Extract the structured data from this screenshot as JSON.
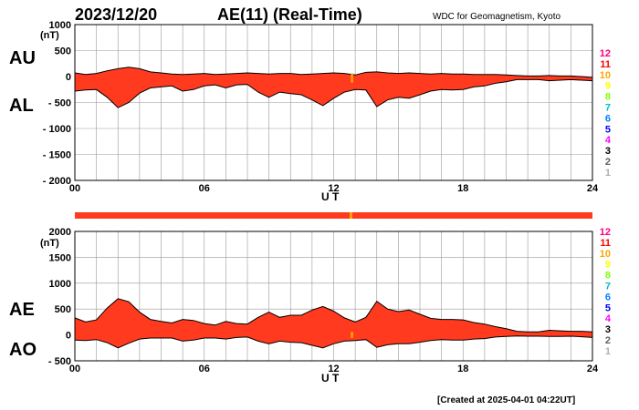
{
  "header": {
    "date": "2023/12/20",
    "title": "AE(11) (Real-Time)",
    "source": "WDC for Geomagnetism, Kyoto"
  },
  "footer": {
    "created": "[Created at 2025-04-01 04:22UT]"
  },
  "station_count_legend": [
    "12",
    "11",
    "10",
    "9",
    "8",
    "7",
    "6",
    "5",
    "4",
    "3",
    "2",
    "1"
  ],
  "station_count_colors": [
    "#ff0080",
    "#ff0000",
    "#ffa500",
    "#ffff00",
    "#80ff00",
    "#00c0c0",
    "#0080ff",
    "#0000ff",
    "#ff00ff",
    "#000000",
    "#606060",
    "#b0b0b0"
  ],
  "colors": {
    "fill": "#ff3a1e",
    "fill_dark": "#e8300f",
    "gap": "#ffa500",
    "line": "#000000",
    "grid": "#999999"
  },
  "chart_data": [
    {
      "type": "area",
      "title": "",
      "xlabel": "U T",
      "ylabel": "(nT)",
      "upper_series_label": "AU",
      "lower_series_label": "AL",
      "x_ticks": [
        "00",
        "06",
        "12",
        "18",
        "24"
      ],
      "y_ticks": [
        "1000",
        "500",
        "0",
        "- 500",
        "- 1000",
        "- 1500",
        "- 2000"
      ],
      "xlim": [
        0,
        24
      ],
      "ylim": [
        -2000,
        1000
      ],
      "grid": true,
      "series": [
        {
          "name": "AU",
          "x": [
            0,
            0.5,
            1,
            1.5,
            2,
            2.5,
            3,
            3.5,
            4,
            4.5,
            5,
            5.5,
            6,
            6.5,
            7,
            7.5,
            8,
            8.5,
            9,
            9.5,
            10,
            10.5,
            11,
            11.5,
            12,
            12.5,
            13,
            13.5,
            14,
            14.5,
            15,
            15.5,
            16,
            16.5,
            17,
            17.5,
            18,
            18.5,
            19,
            19.5,
            20,
            20.5,
            21,
            21.5,
            22,
            22.5,
            23,
            23.5,
            24
          ],
          "values": [
            70,
            40,
            60,
            110,
            150,
            180,
            150,
            90,
            70,
            50,
            40,
            50,
            60,
            40,
            50,
            60,
            70,
            60,
            50,
            60,
            60,
            40,
            50,
            60,
            70,
            60,
            30,
            80,
            90,
            70,
            60,
            70,
            60,
            50,
            60,
            50,
            50,
            40,
            40,
            40,
            30,
            20,
            10,
            10,
            20,
            10,
            10,
            0,
            -20
          ]
        },
        {
          "name": "AL",
          "x": [
            0,
            0.5,
            1,
            1.5,
            2,
            2.5,
            3,
            3.5,
            4,
            4.5,
            5,
            5.5,
            6,
            6.5,
            7,
            7.5,
            8,
            8.5,
            9,
            9.5,
            10,
            10.5,
            11,
            11.5,
            12,
            12.5,
            13,
            13.5,
            14,
            14.5,
            15,
            15.5,
            16,
            16.5,
            17,
            17.5,
            18,
            18.5,
            19,
            19.5,
            20,
            20.5,
            21,
            21.5,
            22,
            22.5,
            23,
            23.5,
            24
          ],
          "values": [
            -280,
            -260,
            -250,
            -400,
            -600,
            -500,
            -320,
            -220,
            -200,
            -180,
            -280,
            -250,
            -180,
            -160,
            -220,
            -160,
            -150,
            -300,
            -400,
            -300,
            -330,
            -350,
            -450,
            -560,
            -420,
            -300,
            -250,
            -260,
            -580,
            -450,
            -400,
            -420,
            -350,
            -280,
            -250,
            -260,
            -250,
            -200,
            -180,
            -130,
            -100,
            -60,
            -60,
            -60,
            -80,
            -70,
            -60,
            -70,
            -80
          ]
        }
      ]
    },
    {
      "type": "area",
      "title": "",
      "xlabel": "U T",
      "ylabel": "(nT)",
      "upper_series_label": "AE",
      "lower_series_label": "AO",
      "x_ticks": [
        "00",
        "06",
        "12",
        "18",
        "24"
      ],
      "y_ticks": [
        "2000",
        "1500",
        "1000",
        "500",
        "0",
        "- 500"
      ],
      "xlim": [
        0,
        24
      ],
      "ylim": [
        -500,
        2000
      ],
      "grid": true,
      "series": [
        {
          "name": "AE",
          "x": [
            0,
            0.5,
            1,
            1.5,
            2,
            2.5,
            3,
            3.5,
            4,
            4.5,
            5,
            5.5,
            6,
            6.5,
            7,
            7.5,
            8,
            8.5,
            9,
            9.5,
            10,
            10.5,
            11,
            11.5,
            12,
            12.5,
            13,
            13.5,
            14,
            14.5,
            15,
            15.5,
            16,
            16.5,
            17,
            17.5,
            18,
            18.5,
            19,
            19.5,
            20,
            20.5,
            21,
            21.5,
            22,
            22.5,
            23,
            23.5,
            24
          ],
          "values": [
            330,
            250,
            290,
            520,
            700,
            640,
            440,
            300,
            260,
            230,
            300,
            280,
            220,
            190,
            260,
            220,
            210,
            340,
            440,
            340,
            380,
            380,
            480,
            550,
            460,
            330,
            250,
            340,
            650,
            500,
            450,
            480,
            400,
            320,
            300,
            300,
            290,
            240,
            210,
            160,
            120,
            70,
            60,
            60,
            90,
            80,
            70,
            70,
            60
          ]
        },
        {
          "name": "AO",
          "x": [
            0,
            0.5,
            1,
            1.5,
            2,
            2.5,
            3,
            3.5,
            4,
            4.5,
            5,
            5.5,
            6,
            6.5,
            7,
            7.5,
            8,
            8.5,
            9,
            9.5,
            10,
            10.5,
            11,
            11.5,
            12,
            12.5,
            13,
            13.5,
            14,
            14.5,
            15,
            15.5,
            16,
            16.5,
            17,
            17.5,
            18,
            18.5,
            19,
            19.5,
            20,
            20.5,
            21,
            21.5,
            22,
            22.5,
            23,
            23.5,
            24
          ],
          "values": [
            -100,
            -110,
            -90,
            -150,
            -250,
            -160,
            -80,
            -60,
            -60,
            -60,
            -120,
            -100,
            -60,
            -60,
            -80,
            -50,
            -40,
            -120,
            -170,
            -120,
            -140,
            -150,
            -200,
            -250,
            -170,
            -120,
            -110,
            -90,
            -240,
            -190,
            -170,
            -170,
            -140,
            -110,
            -90,
            -100,
            -100,
            -80,
            -70,
            -40,
            -30,
            -20,
            -25,
            -25,
            -30,
            -30,
            -25,
            -35,
            -50
          ]
        }
      ]
    }
  ]
}
